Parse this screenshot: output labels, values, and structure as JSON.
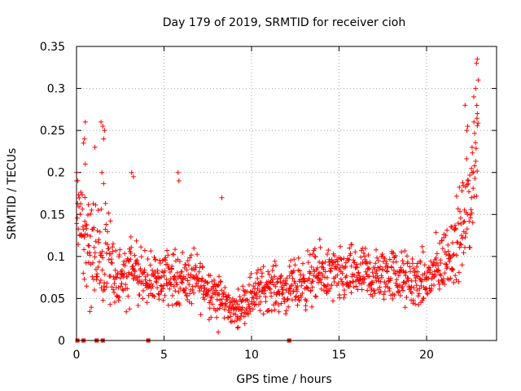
{
  "chart_data": {
    "type": "scatter",
    "title": "Day 179 of 2019, SRMTID for receiver cioh",
    "xlabel": "GPS time / hours",
    "ylabel": "SRMTID / TECUs",
    "xlim": [
      0,
      24
    ],
    "ylim": [
      0,
      0.35
    ],
    "xticks": [
      0,
      5,
      10,
      15,
      20
    ],
    "xtick_labels": [
      "0",
      "5",
      "10",
      "15",
      "20"
    ],
    "yticks": [
      0,
      0.05,
      0.1,
      0.15,
      0.2,
      0.25,
      0.3,
      0.35
    ],
    "ytick_labels": [
      "0",
      "0.05",
      "0.1",
      "0.15",
      "0.2",
      "0.25",
      "0.3",
      "0.35"
    ],
    "grid": true,
    "marker": "plus",
    "color": "#ff0000",
    "zero_flags_x": [
      0.05,
      0.4,
      1.15,
      1.5,
      4.1,
      12.15
    ],
    "envelope": [
      {
        "x": 0.0,
        "base": 0.16,
        "spread": 0.05
      },
      {
        "x": 0.5,
        "base": 0.12,
        "spread": 0.06
      },
      {
        "x": 1.0,
        "base": 0.1,
        "spread": 0.06
      },
      {
        "x": 1.5,
        "base": 0.11,
        "spread": 0.06
      },
      {
        "x": 2.0,
        "base": 0.09,
        "spread": 0.04
      },
      {
        "x": 2.5,
        "base": 0.065,
        "spread": 0.03
      },
      {
        "x": 3.0,
        "base": 0.085,
        "spread": 0.04
      },
      {
        "x": 3.5,
        "base": 0.08,
        "spread": 0.035
      },
      {
        "x": 4.0,
        "base": 0.07,
        "spread": 0.03
      },
      {
        "x": 5.0,
        "base": 0.075,
        "spread": 0.03
      },
      {
        "x": 6.0,
        "base": 0.075,
        "spread": 0.03
      },
      {
        "x": 7.0,
        "base": 0.07,
        "spread": 0.03
      },
      {
        "x": 8.0,
        "base": 0.055,
        "spread": 0.025
      },
      {
        "x": 9.0,
        "base": 0.035,
        "spread": 0.015
      },
      {
        "x": 10.0,
        "base": 0.055,
        "spread": 0.025
      },
      {
        "x": 11.0,
        "base": 0.065,
        "spread": 0.025
      },
      {
        "x": 12.0,
        "base": 0.06,
        "spread": 0.025
      },
      {
        "x": 13.0,
        "base": 0.07,
        "spread": 0.03
      },
      {
        "x": 14.0,
        "base": 0.08,
        "spread": 0.03
      },
      {
        "x": 15.0,
        "base": 0.075,
        "spread": 0.03
      },
      {
        "x": 16.0,
        "base": 0.08,
        "spread": 0.03
      },
      {
        "x": 17.0,
        "base": 0.075,
        "spread": 0.03
      },
      {
        "x": 18.0,
        "base": 0.08,
        "spread": 0.03
      },
      {
        "x": 19.0,
        "base": 0.07,
        "spread": 0.03
      },
      {
        "x": 20.0,
        "base": 0.07,
        "spread": 0.03
      },
      {
        "x": 20.8,
        "base": 0.09,
        "spread": 0.035
      },
      {
        "x": 21.5,
        "base": 0.11,
        "spread": 0.04
      },
      {
        "x": 22.0,
        "base": 0.13,
        "spread": 0.05
      },
      {
        "x": 22.5,
        "base": 0.17,
        "spread": 0.06
      },
      {
        "x": 22.9,
        "base": 0.24,
        "spread": 0.07
      }
    ],
    "outliers": [
      {
        "x": 0.0,
        "y": 0.19
      },
      {
        "x": 0.0,
        "y": 0.2
      },
      {
        "x": 0.5,
        "y": 0.26
      },
      {
        "x": 0.45,
        "y": 0.24
      },
      {
        "x": 0.4,
        "y": 0.235
      },
      {
        "x": 0.5,
        "y": 0.21
      },
      {
        "x": 1.05,
        "y": 0.23
      },
      {
        "x": 1.4,
        "y": 0.26
      },
      {
        "x": 1.5,
        "y": 0.255
      },
      {
        "x": 1.6,
        "y": 0.25
      },
      {
        "x": 1.45,
        "y": 0.2
      },
      {
        "x": 1.55,
        "y": 0.24
      },
      {
        "x": 3.15,
        "y": 0.2
      },
      {
        "x": 3.25,
        "y": 0.195
      },
      {
        "x": 5.8,
        "y": 0.2
      },
      {
        "x": 5.85,
        "y": 0.19
      },
      {
        "x": 8.3,
        "y": 0.17
      },
      {
        "x": 9.2,
        "y": 0.015
      },
      {
        "x": 8.1,
        "y": 0.01
      },
      {
        "x": 22.2,
        "y": 0.28
      },
      {
        "x": 22.3,
        "y": 0.25
      },
      {
        "x": 22.35,
        "y": 0.255
      },
      {
        "x": 22.8,
        "y": 0.3
      },
      {
        "x": 22.85,
        "y": 0.33
      },
      {
        "x": 22.9,
        "y": 0.335
      },
      {
        "x": 22.95,
        "y": 0.31
      },
      {
        "x": 22.9,
        "y": 0.27
      },
      {
        "x": 22.7,
        "y": 0.29
      },
      {
        "x": 22.6,
        "y": 0.23
      }
    ]
  }
}
